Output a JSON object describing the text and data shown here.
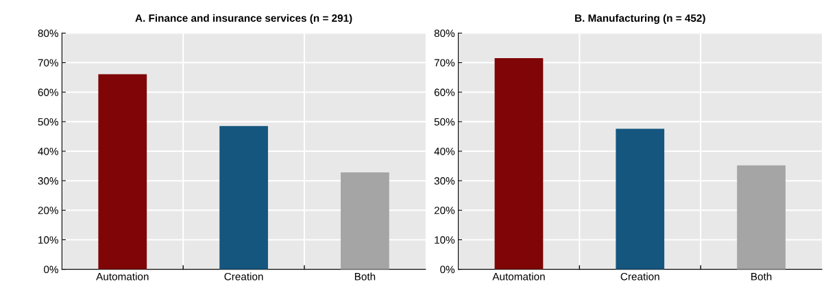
{
  "chart_data": [
    {
      "type": "bar",
      "title": "A. Finance and insurance services (n = 291)",
      "categories": [
        "Automation",
        "Creation",
        "Both"
      ],
      "values": [
        66.1,
        48.5,
        32.8
      ],
      "colors": [
        "#7f0506",
        "#15567f",
        "#a5a5a5"
      ],
      "ylim": [
        0,
        80
      ],
      "yticks": [
        {
          "value": 0,
          "label": "0%"
        },
        {
          "value": 10,
          "label": "10%"
        },
        {
          "value": 20,
          "label": "20%"
        },
        {
          "value": 30,
          "label": "30%"
        },
        {
          "value": 40,
          "label": "40%"
        },
        {
          "value": 50,
          "label": "50%"
        },
        {
          "value": 60,
          "label": "60%"
        },
        {
          "value": 70,
          "label": "70%"
        },
        {
          "value": 80,
          "label": "80%"
        }
      ],
      "grid": true
    },
    {
      "type": "bar",
      "title": "B. Manufacturing (n = 452)",
      "categories": [
        "Automation",
        "Creation",
        "Both"
      ],
      "values": [
        71.5,
        47.6,
        35.2
      ],
      "colors": [
        "#7f0506",
        "#15567f",
        "#a5a5a5"
      ],
      "ylim": [
        0,
        80
      ],
      "yticks": [
        {
          "value": 0,
          "label": "0%"
        },
        {
          "value": 10,
          "label": "10%"
        },
        {
          "value": 20,
          "label": "20%"
        },
        {
          "value": 30,
          "label": "30%"
        },
        {
          "value": 40,
          "label": "40%"
        },
        {
          "value": 50,
          "label": "50%"
        },
        {
          "value": 60,
          "label": "60%"
        },
        {
          "value": 70,
          "label": "70%"
        },
        {
          "value": 80,
          "label": "80%"
        }
      ],
      "grid": true
    }
  ]
}
